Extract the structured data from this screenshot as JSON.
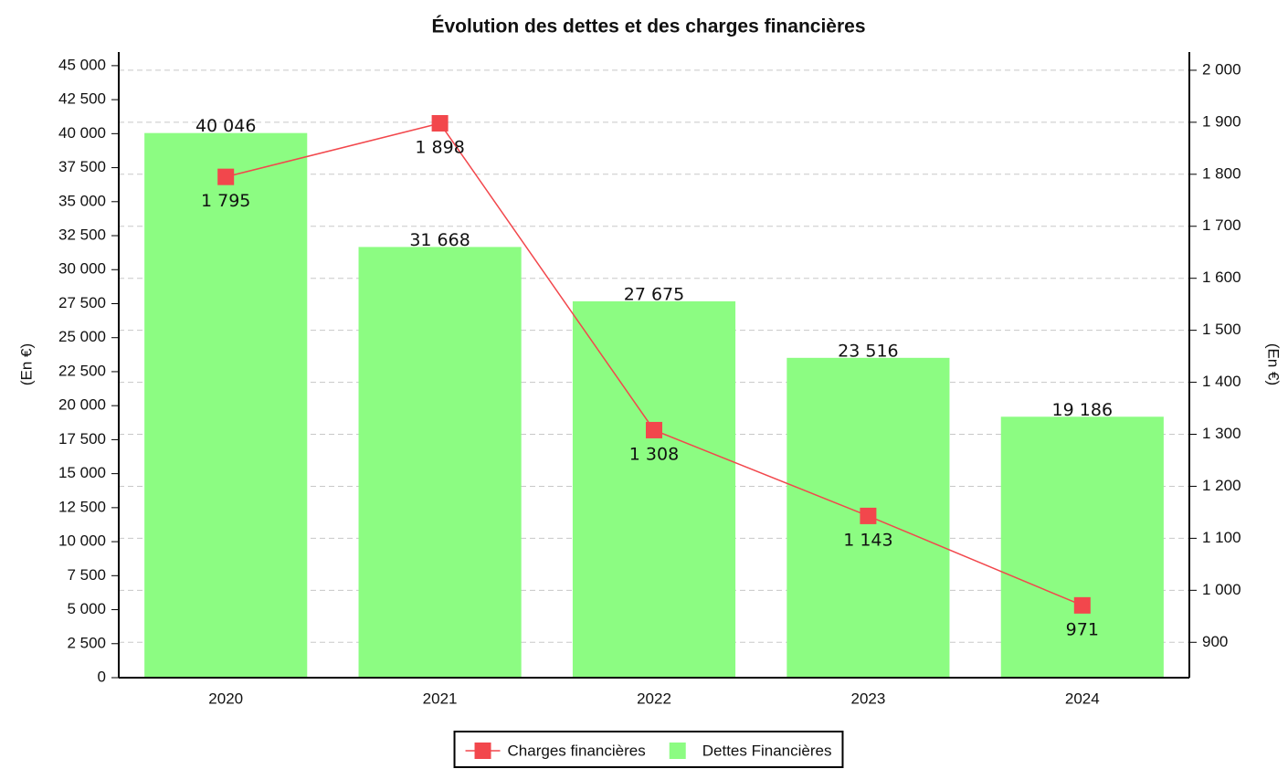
{
  "chart_data": {
    "type": "combo",
    "title": "Évolution des dettes et des charges financières",
    "y_label": "(En €)",
    "y2_label": "(En €)",
    "categories": [
      "2020",
      "2021",
      "2022",
      "2023",
      "2024"
    ],
    "series": [
      {
        "name": "Charges financières",
        "type": "line",
        "axis": "y2",
        "color": "#f2474c",
        "values": [
          1795,
          1898,
          1308,
          1143,
          971
        ],
        "value_labels": [
          "1 795",
          "1 898",
          "1 308",
          "1 143",
          "971"
        ]
      },
      {
        "name": "Dettes Financières",
        "type": "bar",
        "color": "#8cfc82",
        "values": [
          40046,
          31668,
          27675,
          23516,
          19186
        ],
        "value_labels": [
          "40 046",
          "31 668",
          "27 675",
          "23 516",
          "19 186"
        ]
      }
    ],
    "ylim": [
      0,
      46000
    ],
    "yticks": [
      0,
      {
        "value": 2500,
        "label": "2 500"
      },
      {
        "value": 5000,
        "label": "5 000"
      },
      {
        "value": 7500,
        "label": "7 500"
      },
      {
        "value": 10000,
        "label": "10 000"
      },
      {
        "value": 12500,
        "label": "12 500"
      },
      {
        "value": 15000,
        "label": "15 000"
      },
      {
        "value": 17500,
        "label": "17 500"
      },
      {
        "value": 20000,
        "label": "20 000"
      },
      {
        "value": 22500,
        "label": "22 500"
      },
      {
        "value": 25000,
        "label": "25 000"
      },
      {
        "value": 27500,
        "label": "27 500"
      },
      {
        "value": 30000,
        "label": "30 000"
      },
      {
        "value": 32500,
        "label": "32 500"
      },
      {
        "value": 35000,
        "label": "35 000"
      },
      {
        "value": 37500,
        "label": "37 500"
      },
      {
        "value": 40000,
        "label": "40 000"
      },
      {
        "value": 42500,
        "label": "42 500"
      },
      {
        "value": 45000,
        "label": "45 000"
      }
    ],
    "y2lim": [
      832,
      2035
    ],
    "y2ticks": [
      900,
      {
        "value": 1000,
        "label": "1 000"
      },
      {
        "value": 1100,
        "label": "1 100"
      },
      {
        "value": 1200,
        "label": "1 200"
      },
      {
        "value": 1300,
        "label": "1 300"
      },
      {
        "value": 1400,
        "label": "1 400"
      },
      {
        "value": 1500,
        "label": "1 500"
      },
      {
        "value": 1600,
        "label": "1 600"
      },
      {
        "value": 1700,
        "label": "1 700"
      },
      {
        "value": 1800,
        "label": "1 800"
      },
      {
        "value": 1900,
        "label": "1 900"
      },
      {
        "value": 2000,
        "label": "2 000"
      }
    ],
    "grid": "y2",
    "legend": "bottom"
  }
}
